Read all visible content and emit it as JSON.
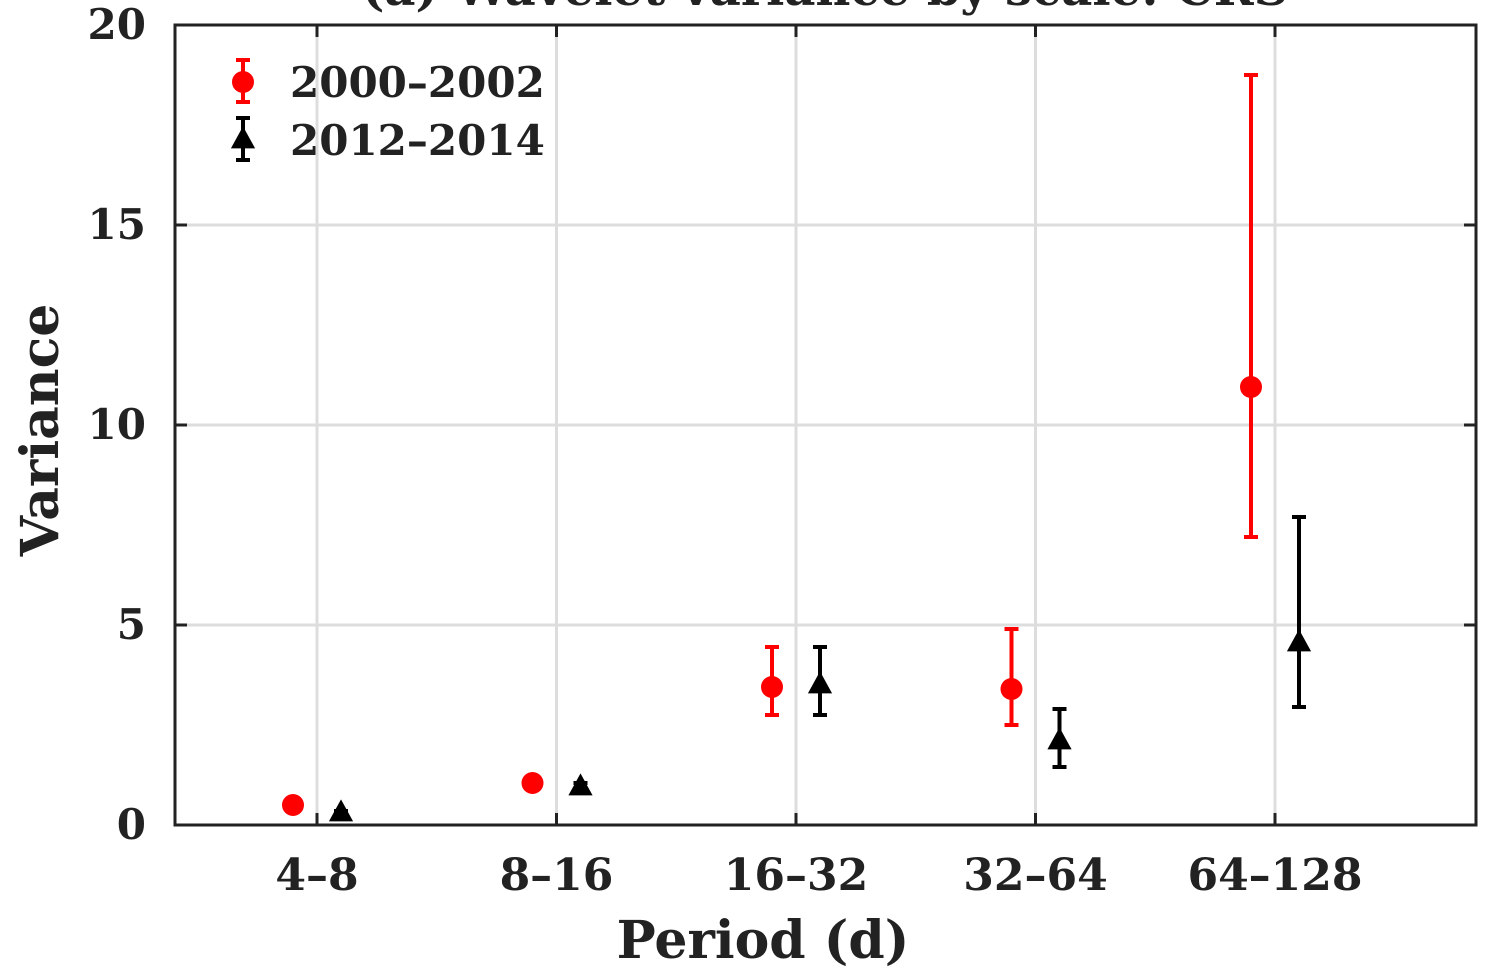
{
  "chart_data": {
    "type": "scatter",
    "title": "(a) Wavelet variance by scale: CRS",
    "xlabel": "Period (d)",
    "ylabel": "Variance",
    "categories": [
      "4–8",
      "8–16",
      "16–32",
      "32–64",
      "64–128"
    ],
    "ylim": [
      0,
      20
    ],
    "yticks": [
      "0",
      "5",
      "10",
      "15",
      "20"
    ],
    "grid": true,
    "legend_position": "top-left",
    "series": [
      {
        "name": "2000–2002",
        "marker": "circle",
        "color": "#ff0000",
        "values": [
          0.5,
          1.05,
          3.45,
          3.4,
          10.95
        ],
        "lower": [
          0.5,
          1.0,
          2.75,
          2.5,
          7.2
        ],
        "upper": [
          0.5,
          1.2,
          4.45,
          4.9,
          18.75
        ]
      },
      {
        "name": "2012–2014",
        "marker": "triangle",
        "color": "#000000",
        "values": [
          0.3,
          0.95,
          3.5,
          2.1,
          4.55
        ],
        "lower": [
          0.25,
          0.85,
          2.75,
          1.45,
          2.95
        ],
        "upper": [
          0.35,
          1.05,
          4.45,
          2.9,
          7.7
        ]
      }
    ]
  }
}
